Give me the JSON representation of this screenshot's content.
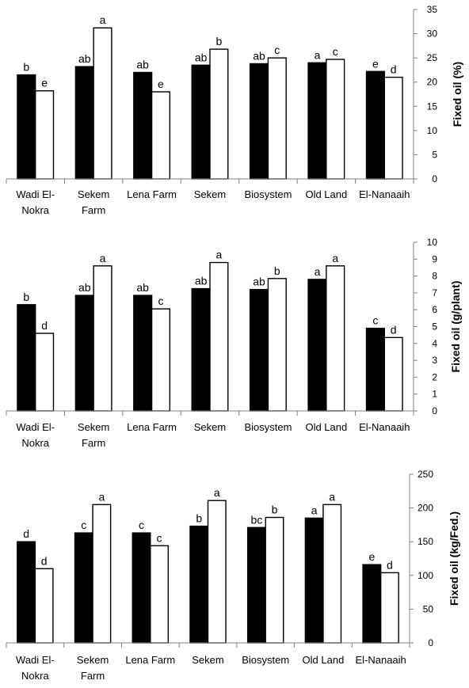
{
  "chart_data": [
    {
      "type": "bar",
      "categories": [
        "Wadi El-Nokra",
        "Sekem Farm",
        "Lena Farm",
        "Sekem",
        "Biosystem",
        "Old Land",
        "El-Nanaaih"
      ],
      "ylabel": "Fixed oil (%)",
      "ylim": [
        0,
        35
      ],
      "yticks": [
        0,
        5,
        10,
        15,
        20,
        25,
        30,
        35
      ],
      "series": [
        {
          "color": "#000000",
          "values": [
            21.5,
            23.2,
            22.0,
            23.5,
            23.8,
            24.0,
            22.2
          ],
          "letters": [
            "b",
            "ab",
            "ab",
            "ab",
            "ab",
            "a",
            "e"
          ]
        },
        {
          "color": "#ffffff",
          "values": [
            18.2,
            31.2,
            18.0,
            26.8,
            25.0,
            24.7,
            21.0
          ],
          "letters": [
            "e",
            "a",
            "e",
            "b",
            "c",
            "c",
            "d"
          ]
        }
      ]
    },
    {
      "type": "bar",
      "categories": [
        "Wadi El-Nokra",
        "Sekem Farm",
        "Lena Farm",
        "Sekem",
        "Biosystem",
        "Old Land",
        "El-Nanaaih"
      ],
      "ylabel": "Fixed oil (g/plant)",
      "ylim": [
        0,
        10
      ],
      "yticks": [
        0,
        1,
        2,
        3,
        4,
        5,
        6,
        7,
        8,
        9,
        10
      ],
      "series": [
        {
          "color": "#000000",
          "values": [
            6.3,
            6.85,
            6.85,
            7.25,
            7.2,
            7.8,
            4.9
          ],
          "letters": [
            "b",
            "ab",
            "ab",
            "ab",
            "ab",
            "a",
            "c"
          ]
        },
        {
          "color": "#ffffff",
          "values": [
            4.6,
            8.6,
            6.05,
            8.8,
            7.85,
            8.6,
            4.35
          ],
          "letters": [
            "d",
            "a",
            "c",
            "a",
            "b",
            "a",
            "d"
          ]
        }
      ]
    },
    {
      "type": "bar",
      "categories": [
        "Wadi El-Nokra",
        "Sekem Farm",
        "Lena Farm",
        "Sekem",
        "Biosystem",
        "Old Land",
        "El-Nanaaih"
      ],
      "ylabel": "Fixed oil (kg/Fed.)",
      "ylim": [
        0,
        250
      ],
      "yticks": [
        0,
        50,
        100,
        150,
        200,
        250
      ],
      "series": [
        {
          "color": "#000000",
          "values": [
            150,
            163,
            163,
            173,
            171,
            185,
            116
          ],
          "letters": [
            "d",
            "c",
            "c",
            "b",
            "bc",
            "a",
            "e"
          ]
        },
        {
          "color": "#ffffff",
          "values": [
            110,
            205,
            144,
            211,
            186,
            205,
            104
          ],
          "letters": [
            "d",
            "a",
            "c",
            "a",
            "b",
            "a",
            "d"
          ]
        }
      ]
    }
  ]
}
